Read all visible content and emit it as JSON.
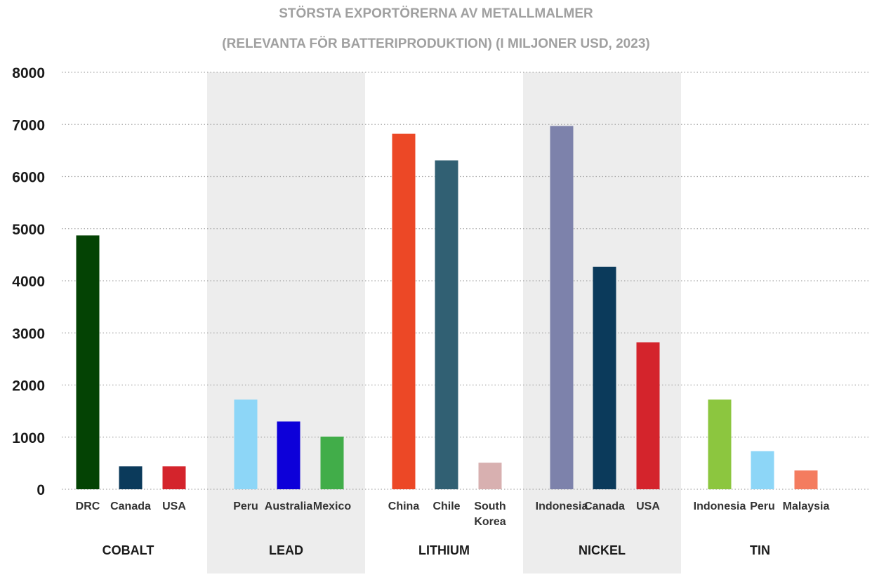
{
  "chart_data": {
    "type": "bar",
    "title_lines": [
      "STÖRSTA EXPORTÖRERNA AV METALLMALMER",
      "(RELEVANTA FÖR BATTERIPRODUKTION) (I MILJONER USD, 2023)"
    ],
    "ylim": [
      0,
      8000
    ],
    "yticks": [
      "0",
      "1000",
      "2000",
      "3000",
      "4000",
      "5000",
      "6000",
      "7000",
      "8000"
    ],
    "grid": true,
    "groups": [
      {
        "label": "COBALT",
        "shaded": false,
        "bars": [
          {
            "label": [
              "DRC"
            ],
            "value": 4870,
            "color": "#044304"
          },
          {
            "label": [
              "Canada"
            ],
            "value": 440,
            "color": "#0b3a5b"
          },
          {
            "label": [
              "USA"
            ],
            "value": 440,
            "color": "#d4242c"
          }
        ]
      },
      {
        "label": "LEAD",
        "shaded": true,
        "bars": [
          {
            "label": [
              "Peru"
            ],
            "value": 1720,
            "color": "#8dd6f7"
          },
          {
            "label": [
              "Australia"
            ],
            "value": 1300,
            "color": "#0d00d9"
          },
          {
            "label": [
              "Mexico"
            ],
            "value": 1010,
            "color": "#41ad49"
          }
        ]
      },
      {
        "label": "LITHIUM",
        "shaded": false,
        "bars": [
          {
            "label": [
              "China"
            ],
            "value": 6820,
            "color": "#ec4826"
          },
          {
            "label": [
              "Chile"
            ],
            "value": 6310,
            "color": "#316073"
          },
          {
            "label": [
              "South",
              "Korea"
            ],
            "value": 510,
            "color": "#d8b0b0"
          }
        ]
      },
      {
        "label": "NICKEL",
        "shaded": true,
        "bars": [
          {
            "label": [
              "Indonesia"
            ],
            "value": 6970,
            "color": "#7d82ab"
          },
          {
            "label": [
              "Canada"
            ],
            "value": 4270,
            "color": "#0b3a5b"
          },
          {
            "label": [
              "USA"
            ],
            "value": 2820,
            "color": "#d4242c"
          }
        ]
      },
      {
        "label": "TIN",
        "shaded": false,
        "bars": [
          {
            "label": [
              "Indonesia"
            ],
            "value": 1720,
            "color": "#8cc63f"
          },
          {
            "label": [
              "Peru"
            ],
            "value": 730,
            "color": "#8dd6f7"
          },
          {
            "label": [
              "Malaysia"
            ],
            "value": 360,
            "color": "#f47c5f"
          }
        ]
      }
    ]
  }
}
